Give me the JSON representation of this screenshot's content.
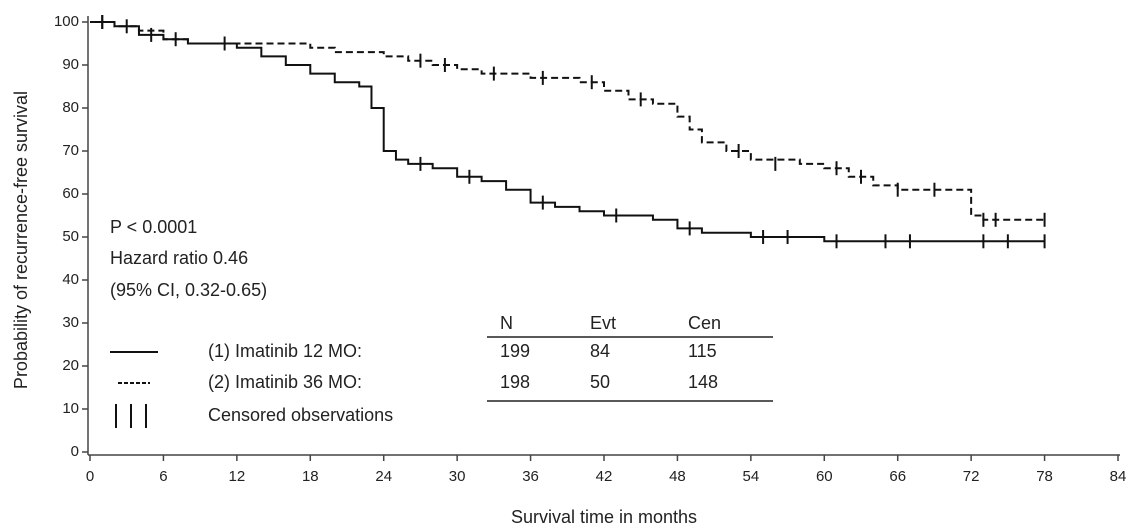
{
  "chart_data": {
    "type": "step",
    "xlabel": "Survival time in months",
    "ylabel": "Probability of recurrence-free survival",
    "xlim": [
      0,
      84
    ],
    "xticks": [
      0,
      6,
      12,
      18,
      24,
      30,
      36,
      42,
      48,
      54,
      60,
      66,
      72,
      78,
      84
    ],
    "ylim": [
      0,
      100
    ],
    "yticks": [
      0,
      10,
      20,
      30,
      40,
      50,
      60,
      70,
      80,
      90,
      100
    ],
    "annotations": [
      "P < 0.0001",
      "Hazard ratio 0.46",
      "(95% CI, 0.32-0.65)"
    ],
    "series": [
      {
        "name": "(1) Imatinib 12 MO:",
        "color": "#111111",
        "dashed": false,
        "x": [
          0,
          2,
          4,
          6,
          8,
          10,
          12,
          14,
          16,
          18,
          20,
          22,
          23,
          24,
          25,
          26,
          28,
          30,
          32,
          34,
          36,
          38,
          40,
          42,
          44,
          46,
          48,
          50,
          54,
          60,
          66,
          72,
          78
        ],
        "values": [
          100,
          99,
          97,
          96,
          95,
          95,
          94,
          92,
          90,
          88,
          86,
          85,
          80,
          70,
          68,
          67,
          66,
          64,
          63,
          61,
          58,
          57,
          56,
          55,
          55,
          54,
          52,
          51,
          50,
          49,
          49,
          49,
          49
        ],
        "censored": {
          "x": [
            1,
            5,
            27,
            31,
            37,
            43,
            49,
            55,
            57,
            61,
            65,
            67,
            73,
            75,
            78
          ],
          "values": [
            100,
            97,
            67,
            64,
            58,
            55,
            52,
            50,
            50,
            49,
            49,
            49,
            49,
            49,
            49
          ]
        }
      },
      {
        "name": "(2) Imatinib 36 MO:",
        "color": "#111111",
        "dashed": true,
        "x": [
          0,
          2,
          4,
          6,
          8,
          10,
          12,
          16,
          18,
          20,
          24,
          26,
          28,
          30,
          32,
          36,
          40,
          42,
          44,
          46,
          48,
          49,
          50,
          52,
          54,
          58,
          60,
          62,
          64,
          66,
          70,
          72,
          73,
          78
        ],
        "values": [
          100,
          99,
          98,
          96,
          95,
          95,
          95,
          95,
          94,
          93,
          92,
          91,
          90,
          89,
          88,
          87,
          86,
          84,
          82,
          81,
          78,
          75,
          72,
          70,
          68,
          67,
          66,
          64,
          62,
          61,
          61,
          55,
          54,
          54
        ],
        "censored": {
          "x": [
            1,
            3,
            7,
            11,
            27,
            29,
            33,
            37,
            41,
            45,
            53,
            56,
            61,
            63,
            66,
            69,
            73,
            74,
            78
          ],
          "values": [
            100,
            99,
            96,
            95,
            91,
            90,
            88,
            87,
            86,
            82,
            70,
            67,
            66,
            64,
            61,
            61,
            54,
            54,
            54
          ]
        }
      }
    ],
    "table": {
      "header": [
        "N",
        "Evt",
        "Cen"
      ],
      "rows": [
        [
          199,
          84,
          115
        ],
        [
          198,
          50,
          148
        ]
      ]
    },
    "censor_label": "Censored observations"
  }
}
